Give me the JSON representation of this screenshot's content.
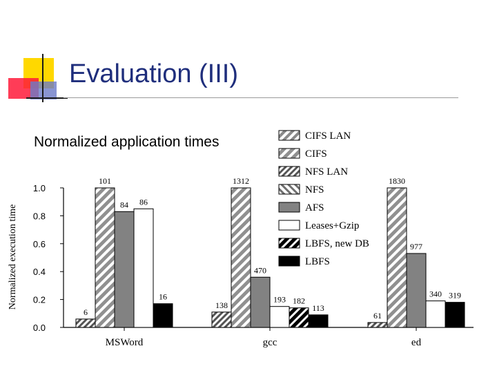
{
  "slide": {
    "title": "Evaluation (III)",
    "subtitle": "Normalized application times"
  },
  "colors": {
    "title": "#1f2e7c",
    "deco_yellow": "#ffd800",
    "deco_red": "#ff1a3a",
    "deco_blue": "#6c7ac8"
  },
  "chart_data": {
    "type": "bar",
    "ylabel": "Normalized execution time",
    "ylim": [
      0,
      1.0
    ],
    "yticks": [
      "0.0",
      "0.2",
      "0.4",
      "0.6",
      "0.8",
      "1.0"
    ],
    "ytick_values": [
      0,
      0.2,
      0.4,
      0.6,
      0.8,
      1.0
    ],
    "categories": [
      "MSWord",
      "gcc",
      "ed"
    ],
    "legend_position": "top-right",
    "series": [
      {
        "name": "CIFS LAN",
        "pattern": "stripe-gray-light",
        "values": [
          null,
          null,
          null
        ],
        "labels": [
          "",
          "",
          ""
        ]
      },
      {
        "name": "CIFS",
        "pattern": "stripe-gray",
        "values": [
          1.0,
          1.0,
          1.0
        ],
        "labels": [
          "101",
          "1312",
          "1830"
        ]
      },
      {
        "name": "NFS LAN",
        "pattern": "stripe-dark",
        "values": [
          0.06,
          0.11,
          0.035
        ],
        "labels": [
          "6",
          "138",
          "61"
        ]
      },
      {
        "name": "NFS",
        "pattern": "backstripe-gray",
        "values": [
          null,
          null,
          null
        ],
        "labels": [
          "",
          "",
          ""
        ]
      },
      {
        "name": "AFS",
        "pattern": "solid-gray",
        "values": [
          0.83,
          0.36,
          0.53
        ],
        "labels": [
          "84",
          "470",
          "977"
        ]
      },
      {
        "name": "Leases+Gzip",
        "pattern": "white",
        "values": [
          0.85,
          0.15,
          0.19
        ],
        "labels": [
          "86",
          "193",
          "340"
        ]
      },
      {
        "name": "LBFS, new DB",
        "pattern": "stripe-black",
        "values": [
          null,
          0.14,
          null
        ],
        "labels": [
          "",
          "182",
          ""
        ]
      },
      {
        "name": "LBFS",
        "pattern": "solid-black",
        "values": [
          0.17,
          0.09,
          0.18
        ],
        "labels": [
          "16",
          "113",
          "319"
        ]
      }
    ]
  }
}
